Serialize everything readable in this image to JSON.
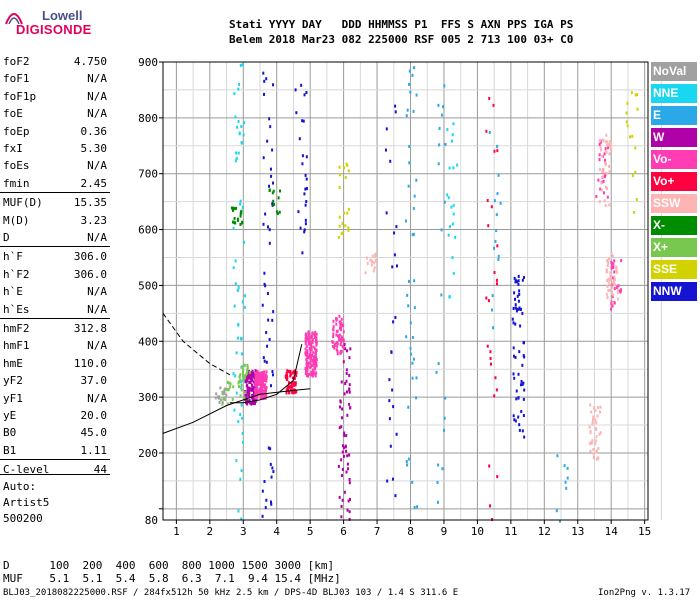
{
  "logo": {
    "top": "Lowell",
    "bottom": "DIGISONDE"
  },
  "header": {
    "line1": "Stati YYYY DAY   DDD HHMMSS P1  FFS S AXN PPS IGA PS",
    "line2": "Belem 2018 Mar23 082 225000 RSF 005 2 713 100 03+ C0"
  },
  "params": [
    {
      "k": "foF2",
      "v": "4.750"
    },
    {
      "k": "foF1",
      "v": "N/A"
    },
    {
      "k": "foF1p",
      "v": "N/A"
    },
    {
      "k": "foE",
      "v": "N/A"
    },
    {
      "k": "foEp",
      "v": "0.36"
    },
    {
      "k": "fxI",
      "v": "5.30"
    },
    {
      "k": "foEs",
      "v": "N/A"
    },
    {
      "k": "fmin",
      "v": "2.45"
    },
    {
      "k": "MUF(D)",
      "v": "15.35"
    },
    {
      "k": "M(D)",
      "v": "3.23"
    },
    {
      "k": "D",
      "v": "N/A"
    },
    {
      "k": "h`F",
      "v": "306.0"
    },
    {
      "k": "h`F2",
      "v": "306.0"
    },
    {
      "k": "h`E",
      "v": "N/A"
    },
    {
      "k": "h`Es",
      "v": "N/A"
    },
    {
      "k": "hmF2",
      "v": "312.8"
    },
    {
      "k": "hmF1",
      "v": "N/A"
    },
    {
      "k": "hmE",
      "v": "110.0"
    },
    {
      "k": "yF2",
      "v": "37.0"
    },
    {
      "k": "yF1",
      "v": "N/A"
    },
    {
      "k": "yE",
      "v": "20.0"
    },
    {
      "k": "B0",
      "v": "45.0"
    },
    {
      "k": "B1",
      "v": "1.11"
    },
    {
      "k": "C-level",
      "v": "44"
    }
  ],
  "auto": {
    "l1": "Auto:",
    "l2": "Artist5",
    "l3": "500200"
  },
  "legend": [
    {
      "label": "NoVal",
      "color": "#a0a0a0"
    },
    {
      "label": "NNE",
      "color": "#19d7f0"
    },
    {
      "label": "E",
      "color": "#2aa8e8"
    },
    {
      "label": "W",
      "color": "#b000a8"
    },
    {
      "label": "Vo-",
      "color": "#ff3cb4"
    },
    {
      "label": "Vo+",
      "color": "#ff0040"
    },
    {
      "label": "SSW",
      "color": "#ffb4b4"
    },
    {
      "label": "X-",
      "color": "#008c00"
    },
    {
      "label": "X+",
      "color": "#78c850"
    },
    {
      "label": "SSE",
      "color": "#d2d200"
    },
    {
      "label": "NNW",
      "color": "#1414d2"
    }
  ],
  "footer": {
    "d_row": "D      100  200  400  600  800 1000 1500 3000 [km]",
    "muf_row": "MUF    5.1  5.1  5.4  5.8  6.3  7.1  9.4 15.4 [MHz]",
    "file_line": "BLJ03_2018082225000.RSF / 284fx512h 50 kHz 2.5 km / DPS-4D BLJ03 103 / 1.4 S 311.6 E",
    "version": "Ion2Png v. 1.3.17"
  },
  "chart_data": {
    "type": "scatter",
    "xlim": [
      0.6,
      15.1
    ],
    "ylim": [
      80,
      900
    ],
    "x_ticks": [
      1,
      2,
      3,
      4,
      5,
      6,
      7,
      8,
      9,
      10,
      11,
      12,
      13,
      14,
      15
    ],
    "y_ticks": [
      100,
      200,
      300,
      400,
      500,
      600,
      700,
      800,
      900
    ],
    "y_tick_labels": [
      "",
      "200",
      "300",
      "400",
      "500",
      "600",
      "700",
      "800",
      "900"
    ],
    "y_extra_labels": [
      {
        "y": 80,
        "label": "80"
      }
    ],
    "series": [
      {
        "name": "NNE",
        "color": "#19d7f0",
        "clusters": [
          [
            2.85,
            80,
            900,
            60
          ],
          [
            9.2,
            480,
            820,
            20
          ]
        ]
      },
      {
        "name": "E",
        "color": "#2aa8e8",
        "clusters": [
          [
            8.0,
            80,
            900,
            40
          ],
          [
            8.9,
            80,
            900,
            20
          ],
          [
            10.5,
            380,
            780,
            15
          ],
          [
            12.5,
            80,
            200,
            8
          ]
        ]
      },
      {
        "name": "W",
        "color": "#b000a8",
        "clusters": [
          [
            3.2,
            290,
            350,
            120
          ],
          [
            6.0,
            80,
            400,
            60
          ]
        ]
      },
      {
        "name": "Vo-",
        "color": "#ff3cb4",
        "clusters": [
          [
            3.5,
            300,
            350,
            160
          ],
          [
            5.0,
            340,
            420,
            160
          ],
          [
            5.8,
            380,
            450,
            60
          ],
          [
            13.7,
            660,
            770,
            25
          ],
          [
            14.1,
            460,
            560,
            25
          ]
        ]
      },
      {
        "name": "Vo+",
        "color": "#ff0040",
        "clusters": [
          [
            4.4,
            310,
            350,
            60
          ],
          [
            10.4,
            80,
            880,
            25
          ]
        ]
      },
      {
        "name": "SSW",
        "color": "#ffb4b4",
        "clusters": [
          [
            13.5,
            190,
            290,
            40
          ],
          [
            13.8,
            640,
            780,
            40
          ],
          [
            14.0,
            470,
            560,
            40
          ],
          [
            6.8,
            520,
            560,
            15
          ]
        ]
      },
      {
        "name": "X-",
        "color": "#008c00",
        "clusters": [
          [
            2.8,
            610,
            660,
            20
          ],
          [
            3.9,
            630,
            680,
            12
          ]
        ]
      },
      {
        "name": "X+",
        "color": "#78c850",
        "clusters": [
          [
            3.0,
            300,
            360,
            30
          ],
          [
            2.5,
            290,
            330,
            15
          ]
        ]
      },
      {
        "name": "SSE",
        "color": "#d2d200",
        "clusters": [
          [
            6.0,
            580,
            720,
            20
          ],
          [
            14.6,
            620,
            860,
            15
          ]
        ]
      },
      {
        "name": "NNW",
        "color": "#1414d2",
        "clusters": [
          [
            3.7,
            80,
            900,
            50
          ],
          [
            11.2,
            230,
            520,
            60
          ],
          [
            4.7,
            560,
            900,
            25
          ],
          [
            7.4,
            80,
            900,
            25
          ]
        ]
      },
      {
        "name": "NoVal",
        "color": "#a0a0a0",
        "clusters": [
          [
            2.3,
            290,
            320,
            15
          ]
        ]
      }
    ],
    "profile_curves": [
      {
        "x": [
          0.6,
          1.5,
          2.5,
          3.5,
          4.5,
          5.0
        ],
        "y": [
          235,
          255,
          285,
          305,
          312,
          315
        ]
      },
      {
        "x": [
          0.6,
          1.2,
          2.0,
          2.6
        ],
        "y": [
          450,
          400,
          360,
          340
        ]
      },
      {
        "x": [
          2.6,
          3.0,
          3.5,
          4.0,
          4.5,
          4.75
        ],
        "y": [
          290,
          290,
          295,
          305,
          330,
          395
        ]
      }
    ]
  }
}
